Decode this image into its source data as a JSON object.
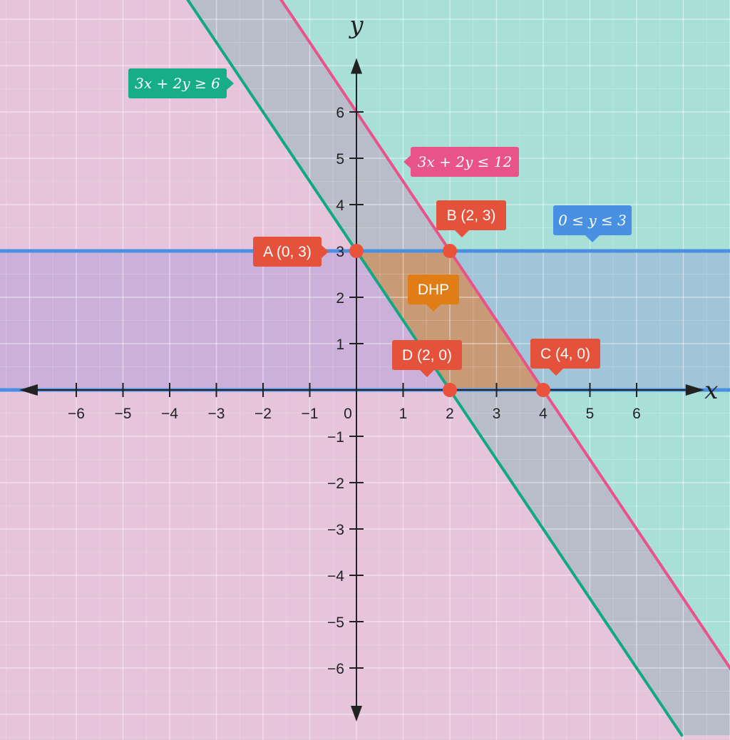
{
  "chart_data": {
    "type": "line",
    "xlabel": "x",
    "ylabel": "y",
    "xlim": [
      -7.3,
      7.8
    ],
    "ylim": [
      -7.3,
      8.3
    ],
    "x_ticks": [
      -6,
      -5,
      -4,
      -3,
      -2,
      -1,
      0,
      1,
      2,
      3,
      4,
      5,
      6
    ],
    "y_ticks": [
      -6,
      -5,
      -4,
      -3,
      -2,
      -1,
      1,
      2,
      3,
      4,
      5,
      6
    ],
    "grid": true,
    "lines": [
      {
        "label": "3x + 2y ≥ 6",
        "a": 3,
        "b": 2,
        "c": 6,
        "color": "#13a884"
      },
      {
        "label": "3x + 2y ≤ 12",
        "a": 3,
        "b": 2,
        "c": 12,
        "color": "#e8548a"
      },
      {
        "label": "0 ≤ y ≤ 3",
        "y_values": [
          0,
          3
        ],
        "color": "#4a90e2"
      }
    ],
    "points": [
      {
        "label": "A (0, 3)",
        "x": 0,
        "y": 3
      },
      {
        "label": "B (2, 3)",
        "x": 2,
        "y": 3
      },
      {
        "label": "C (4, 0)",
        "x": 4,
        "y": 0
      },
      {
        "label": "D (2, 0)",
        "x": 2,
        "y": 0
      }
    ],
    "region": {
      "label": "DHP",
      "vertices": [
        [
          0,
          3
        ],
        [
          2,
          3
        ],
        [
          4,
          0
        ],
        [
          2,
          0
        ]
      ]
    },
    "colors": {
      "pink_bg": "#e5c4dc",
      "teal_bg": "#a8e0d8",
      "band_gray": "#b9bdca",
      "blue_band": "#8f86d7",
      "region": "#c99a76",
      "point": "#e9523b",
      "point_label_bg": "#e4523b",
      "region_label_bg": "#e07e15",
      "axis": "#222222"
    }
  }
}
